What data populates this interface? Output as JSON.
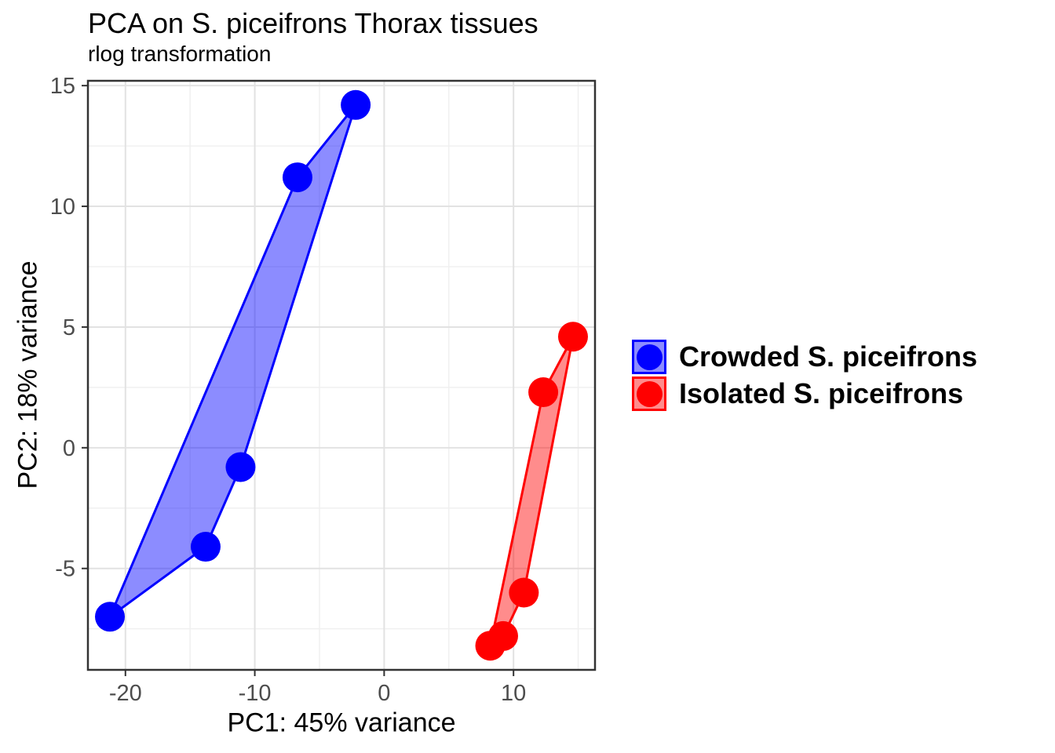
{
  "chart_data": {
    "type": "scatter",
    "title": "PCA on S. piceifrons Thorax tissues",
    "subtitle": "rlog transformation",
    "xlabel": "PC1: 45% variance",
    "ylabel": "PC2: 18% variance",
    "xlim": [
      -22.9,
      16.3
    ],
    "ylim": [
      -9.2,
      15.2
    ],
    "x_ticks": [
      -20,
      -10,
      0,
      10
    ],
    "y_ticks": [
      -5,
      0,
      5,
      10,
      15
    ],
    "x_minor_ticks": [
      -15,
      -5,
      5,
      15
    ],
    "y_minor_ticks": [
      -7.5,
      -2.5,
      2.5,
      7.5,
      12.5
    ],
    "grid": "on",
    "legend_position": "right",
    "point_radius_px": 19,
    "hull_fill_opacity": 0.45,
    "series": [
      {
        "name": "Crowded S. piceifrons",
        "color": "#0000ff",
        "points": [
          {
            "x": -2.2,
            "y": 14.2
          },
          {
            "x": -6.7,
            "y": 11.2
          },
          {
            "x": -11.1,
            "y": -0.8
          },
          {
            "x": -13.8,
            "y": -4.1
          },
          {
            "x": -21.2,
            "y": -7.0
          }
        ],
        "hull_order": [
          0,
          1,
          4,
          3,
          2
        ]
      },
      {
        "name": "Isolated S. piceifrons",
        "color": "#ff0000",
        "points": [
          {
            "x": 14.6,
            "y": 4.6
          },
          {
            "x": 12.3,
            "y": 2.3
          },
          {
            "x": 10.8,
            "y": -6.0
          },
          {
            "x": 9.2,
            "y": -7.8
          },
          {
            "x": 8.2,
            "y": -8.2
          }
        ],
        "hull_order": [
          0,
          1,
          4,
          3,
          2
        ]
      }
    ],
    "colors": {
      "background": "#ffffff",
      "panel_background": "#ffffff",
      "grid_major": "#e2e2e2",
      "grid_minor": "#f0f0f0",
      "panel_border": "#333333",
      "tick": "#333333",
      "tick_label": "#4d4d4d",
      "text": "#000000"
    }
  }
}
